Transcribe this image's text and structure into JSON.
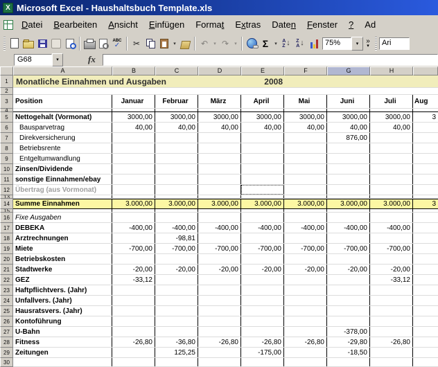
{
  "window": {
    "title": "Microsoft Excel - Haushaltsbuch Template.xls"
  },
  "menu": {
    "items": [
      "Datei",
      "Bearbeiten",
      "Ansicht",
      "Einfügen",
      "Format",
      "Extras",
      "Daten",
      "Fenster",
      "?",
      "Ad"
    ]
  },
  "toolbar": {
    "zoom_value": "75%",
    "font_name_partial": "Ari",
    "icons": {
      "cut": "✂",
      "undo": "↶",
      "redo": "↷",
      "sigma": "Σ",
      "more": "»",
      "dropdown": "▾",
      "check": "✓",
      "abc": "ABC",
      "sort_asc_top": "A",
      "sort_asc_bottom": "Z",
      "sort_arrow": "↓",
      "sort_desc_top": "Z",
      "sort_desc_bottom": "A"
    }
  },
  "formula_bar": {
    "name_box_value": "G68",
    "fx_label": "fx",
    "formula_value": ""
  },
  "colors": {
    "title_bar_start": "#0a246a",
    "title_bar_end": "#2a5ade",
    "chrome": "#d4d0c8",
    "gridline": "#dcdcdc",
    "row1_fill": "#f1edbb",
    "sum_fill": "#fcf7a3",
    "selected_header_fill": "#b1b7d1"
  },
  "sheet": {
    "selected_column": "G",
    "columns": [
      "A",
      "B",
      "C",
      "D",
      "E",
      "F",
      "G",
      "H"
    ],
    "rows": [
      {
        "num": "1",
        "h": 18,
        "type": "title",
        "label": "Monatliche Einnahmen und Ausgaben",
        "year": "2008"
      },
      {
        "num": "2",
        "h": 10,
        "type": "data",
        "style": "plain",
        "label": "",
        "values": [
          "",
          "",
          "",
          "",
          "",
          "",
          "",
          ""
        ]
      },
      {
        "num": "3",
        "h": 20,
        "type": "months",
        "label": "Position",
        "values": [
          "Januar",
          "Februar",
          "März",
          "April",
          "Mai",
          "Juni",
          "Juli",
          "Aug"
        ]
      },
      {
        "num": "4",
        "h": 5,
        "type": "data",
        "style": "plain",
        "label": "",
        "values": [
          "",
          "",
          "",
          "",
          "",
          "",
          "",
          ""
        ],
        "black_bottom": true
      },
      {
        "num": "5",
        "h": 15,
        "type": "data",
        "style": "bold",
        "label": "Nettogehalt (Vormonat)",
        "values": [
          "3000,00",
          "3000,00",
          "3000,00",
          "3000,00",
          "3000,00",
          "3000,00",
          "3000,00",
          "3"
        ]
      },
      {
        "num": "6",
        "h": 15,
        "type": "data",
        "style": "indent",
        "label": "Bausparvetrag",
        "values": [
          "40,00",
          "40,00",
          "40,00",
          "40,00",
          "40,00",
          "40,00",
          "40,00",
          ""
        ]
      },
      {
        "num": "7",
        "h": 15,
        "type": "data",
        "style": "indent",
        "label": "Direkversicherung",
        "values": [
          "",
          "",
          "",
          "",
          "",
          "876,00",
          "",
          ""
        ]
      },
      {
        "num": "8",
        "h": 15,
        "type": "data",
        "style": "indent",
        "label": "Betriebsrente",
        "values": [
          "",
          "",
          "",
          "",
          "",
          "",
          "",
          ""
        ]
      },
      {
        "num": "9",
        "h": 15,
        "type": "data",
        "style": "indent",
        "label": "Entgeltumwandlung",
        "values": [
          "",
          "",
          "",
          "",
          "",
          "",
          "",
          ""
        ]
      },
      {
        "num": "10",
        "h": 15,
        "type": "data",
        "style": "bold",
        "label": "Zinsen/Dividende",
        "values": [
          "",
          "",
          "",
          "",
          "",
          "",
          "",
          ""
        ]
      },
      {
        "num": "11",
        "h": 15,
        "type": "data",
        "style": "bold",
        "label": "sonstige Einnahmen/ebay",
        "values": [
          "",
          "",
          "",
          "",
          "",
          "",
          "",
          ""
        ]
      },
      {
        "num": "12",
        "h": 15,
        "type": "data",
        "style": "gray",
        "label": "Übertrag (aus Vormonat)",
        "values": [
          "",
          "",
          "",
          "",
          "",
          "",
          "",
          ""
        ],
        "dotted_value_index": 3
      },
      {
        "num": "13",
        "h": 5,
        "type": "data",
        "style": "plain",
        "label": "",
        "values": [
          "",
          "",
          "",
          "",
          "",
          "",
          "",
          ""
        ]
      },
      {
        "num": "14",
        "h": 15,
        "type": "data",
        "style": "sum",
        "label": "Summe Einnahmen",
        "values": [
          "3.000,00",
          "3.000,00",
          "3.000,00",
          "3.000,00",
          "3.000,00",
          "3.000,00",
          "3.000,00",
          "3"
        ],
        "black_top": true,
        "black_bottom": true
      },
      {
        "num": "15",
        "h": 5,
        "type": "data",
        "style": "plain",
        "label": "",
        "values": [
          "",
          "",
          "",
          "",
          "",
          "",
          "",
          ""
        ]
      },
      {
        "num": "16",
        "h": 15,
        "type": "data",
        "style": "italic",
        "label": "Fixe Ausgaben",
        "values": [
          "",
          "",
          "",
          "",
          "",
          "",
          "",
          ""
        ]
      },
      {
        "num": "17",
        "h": 15,
        "type": "data",
        "style": "bold",
        "label": "DEBEKA",
        "values": [
          "-400,00",
          "-400,00",
          "-400,00",
          "-400,00",
          "-400,00",
          "-400,00",
          "-400,00",
          ""
        ]
      },
      {
        "num": "18",
        "h": 15,
        "type": "data",
        "style": "bold",
        "label": "Arztrechnungen",
        "values": [
          "",
          "-98,81",
          "",
          "",
          "",
          "",
          "",
          ""
        ]
      },
      {
        "num": "19",
        "h": 15,
        "type": "data",
        "style": "bold",
        "label": "Miete",
        "values": [
          "-700,00",
          "-700,00",
          "-700,00",
          "-700,00",
          "-700,00",
          "-700,00",
          "-700,00",
          ""
        ]
      },
      {
        "num": "20",
        "h": 15,
        "type": "data",
        "style": "bold",
        "label": "Betriebskosten",
        "values": [
          "",
          "",
          "",
          "",
          "",
          "",
          "",
          ""
        ]
      },
      {
        "num": "21",
        "h": 15,
        "type": "data",
        "style": "bold",
        "label": "Stadtwerke",
        "values": [
          "-20,00",
          "-20,00",
          "-20,00",
          "-20,00",
          "-20,00",
          "-20,00",
          "-20,00",
          ""
        ]
      },
      {
        "num": "22",
        "h": 15,
        "type": "data",
        "style": "bold",
        "label": "GEZ",
        "values": [
          "-33,12",
          "",
          "",
          "",
          "",
          "",
          "-33,12",
          ""
        ]
      },
      {
        "num": "23",
        "h": 15,
        "type": "data",
        "style": "bold",
        "label": "Haftpflichtvers. (Jahr)",
        "values": [
          "",
          "",
          "",
          "",
          "",
          "",
          "",
          ""
        ]
      },
      {
        "num": "24",
        "h": 15,
        "type": "data",
        "style": "bold",
        "label": "Unfallvers. (Jahr)",
        "values": [
          "",
          "",
          "",
          "",
          "",
          "",
          "",
          ""
        ]
      },
      {
        "num": "25",
        "h": 15,
        "type": "data",
        "style": "bold",
        "label": "Hausratsvers. (Jahr)",
        "values": [
          "",
          "",
          "",
          "",
          "",
          "",
          "",
          ""
        ]
      },
      {
        "num": "26",
        "h": 15,
        "type": "data",
        "style": "bold",
        "label": "Kontoführung",
        "values": [
          "",
          "",
          "",
          "",
          "",
          "",
          "",
          ""
        ]
      },
      {
        "num": "27",
        "h": 15,
        "type": "data",
        "style": "bold",
        "label": "U-Bahn",
        "values": [
          "",
          "",
          "",
          "",
          "",
          "-378,00",
          "",
          ""
        ]
      },
      {
        "num": "28",
        "h": 15,
        "type": "data",
        "style": "bold",
        "label": "Fitness",
        "values": [
          "-26,80",
          "-36,80",
          "-26,80",
          "-26,80",
          "-26,80",
          "-29,80",
          "-26,80",
          ""
        ]
      },
      {
        "num": "29",
        "h": 15,
        "type": "data",
        "style": "bold",
        "label": "Zeitungen",
        "values": [
          "",
          "125,25",
          "",
          "-175,00",
          "",
          "-18,50",
          "",
          ""
        ]
      },
      {
        "num": "30",
        "h": 13,
        "type": "data",
        "style": "plain",
        "label": "",
        "values": [
          "",
          "",
          "",
          "",
          "",
          "",
          "",
          ""
        ]
      }
    ]
  }
}
